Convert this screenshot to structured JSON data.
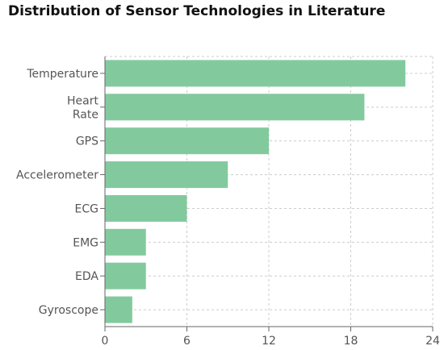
{
  "chart_data": {
    "type": "bar",
    "orientation": "horizontal",
    "title": "Distribution of Sensor Technologies in Literature",
    "categories": [
      "Temperature",
      "Heart Rate",
      "GPS",
      "Accelerometer",
      "ECG",
      "EMG",
      "EDA",
      "Gyroscope"
    ],
    "category_lines": [
      [
        "Temperature"
      ],
      [
        "Heart",
        "Rate"
      ],
      [
        "GPS"
      ],
      [
        "Accelerometer"
      ],
      [
        "ECG"
      ],
      [
        "EMG"
      ],
      [
        "EDA"
      ],
      [
        "Gyroscope"
      ]
    ],
    "values": [
      22,
      19,
      12,
      9,
      6,
      3,
      3,
      2
    ],
    "xlim": [
      0,
      24
    ],
    "xticks": [
      0,
      6,
      12,
      18,
      24
    ],
    "xlabel": "",
    "ylabel": "",
    "grid": true,
    "legend": "none",
    "colors": {
      "bar": "#82ca9d",
      "grid": "#cccccc",
      "axis": "#666666",
      "text": "#555555"
    }
  }
}
